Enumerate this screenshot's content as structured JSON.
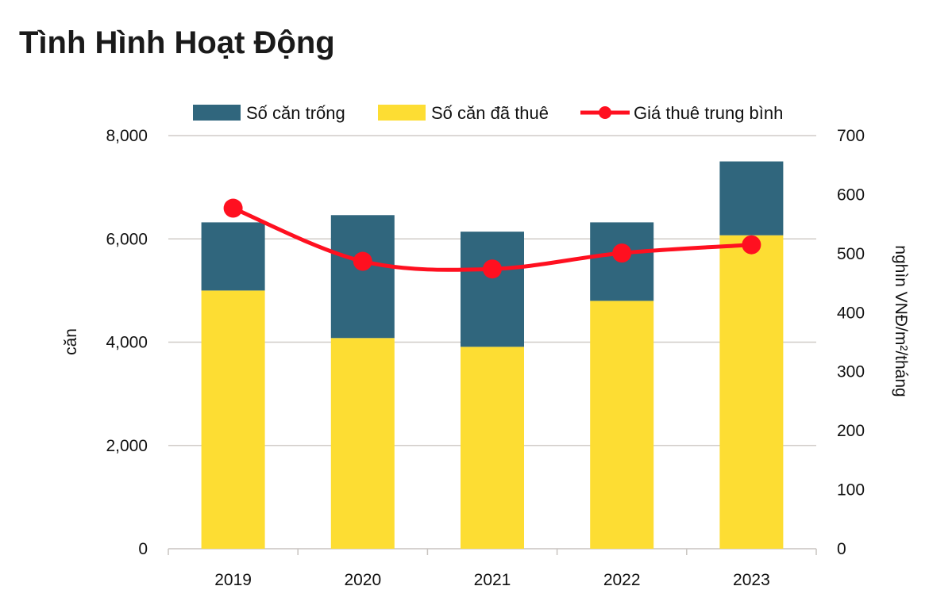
{
  "chart_data": {
    "type": "bar+line",
    "title": "Tình Hình Hoạt Động",
    "categories": [
      "2019",
      "2020",
      "2021",
      "2022",
      "2023"
    ],
    "series": [
      {
        "name": "Số căn trống",
        "type": "stacked-bar",
        "axis": "left",
        "color": "#30667D",
        "values": [
          1320,
          2380,
          2230,
          1520,
          1430
        ]
      },
      {
        "name": "Số căn đã thuê",
        "type": "stacked-bar",
        "axis": "left",
        "color": "#FDDD33",
        "values": [
          5000,
          4080,
          3910,
          4800,
          6070
        ]
      },
      {
        "name": "Giá thuê trung bình",
        "type": "line",
        "axis": "right",
        "color": "#FF1020",
        "values": [
          577,
          487,
          474,
          501,
          515
        ]
      }
    ],
    "ylabel": "căn",
    "y2label": "nghìn VNĐ/m²/tháng",
    "ylim": [
      0,
      8000
    ],
    "y2lim": [
      0,
      700
    ],
    "yticks": [
      "0",
      "2,000",
      "4,000",
      "6,000",
      "8,000"
    ],
    "y2ticks": [
      "0",
      "100",
      "200",
      "300",
      "400",
      "500",
      "600",
      "700"
    ],
    "grid": true,
    "legend": "top"
  }
}
